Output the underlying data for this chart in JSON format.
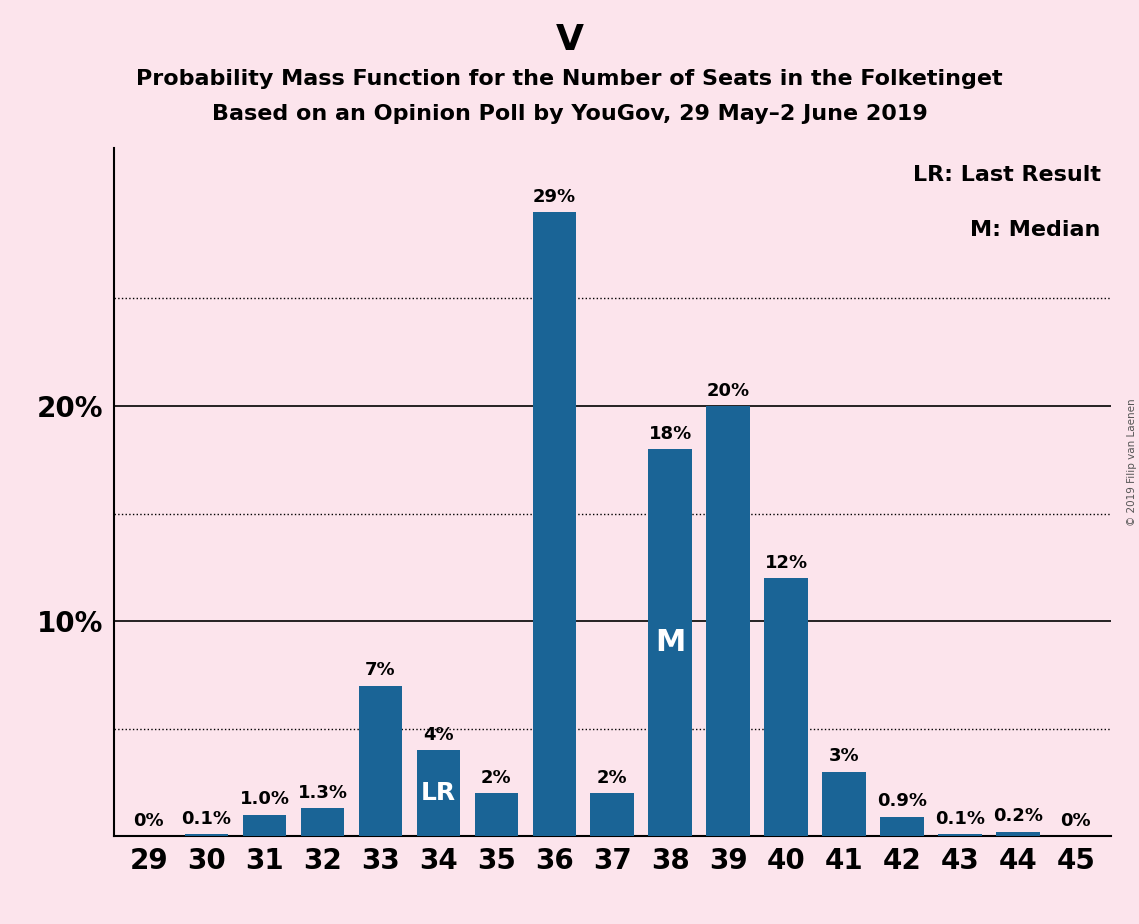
{
  "title_main": "V",
  "title_line1": "Probability Mass Function for the Number of Seats in the Folketinget",
  "title_line2": "Based on an Opinion Poll by YouGov, 29 May–2 June 2019",
  "watermark": "© 2019 Filip van Laenen",
  "seats": [
    29,
    30,
    31,
    32,
    33,
    34,
    35,
    36,
    37,
    38,
    39,
    40,
    41,
    42,
    43,
    44,
    45
  ],
  "probabilities": [
    0.0,
    0.1,
    1.0,
    1.3,
    7.0,
    4.0,
    2.0,
    29.0,
    2.0,
    18.0,
    20.0,
    12.0,
    3.0,
    0.9,
    0.1,
    0.2,
    0.0
  ],
  "labels": [
    "0%",
    "0.1%",
    "1.0%",
    "1.3%",
    "7%",
    "4%",
    "2%",
    "29%",
    "2%",
    "18%",
    "20%",
    "12%",
    "3%",
    "0.9%",
    "0.1%",
    "0.2%",
    "0%"
  ],
  "bar_color": "#1a6496",
  "background_color": "#fce4ec",
  "last_result_seat": 34,
  "median_seat": 38,
  "lr_label": "LR",
  "median_label": "M",
  "legend_lr": "LR: Last Result",
  "legend_m": "M: Median",
  "ylim": [
    0,
    32
  ],
  "solid_grid": [
    10,
    20
  ],
  "dotted_grid": [
    5,
    15,
    25
  ],
  "title_fontsize": 26,
  "subtitle_fontsize": 16,
  "bar_label_fontsize": 13,
  "axis_tick_fontsize": 20,
  "legend_fontsize": 16,
  "inbar_lr_fontsize": 18,
  "inbar_m_fontsize": 22
}
